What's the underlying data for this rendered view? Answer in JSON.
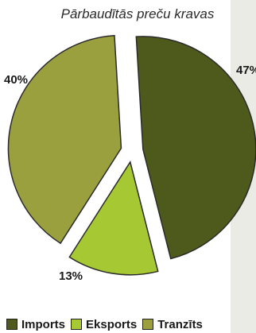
{
  "chart_data": {
    "type": "pie",
    "title": "Pārbaudītās preču kravas",
    "slices": [
      {
        "label": "Imports",
        "value": 47,
        "value_label": "47%",
        "color": "#4e5a1c"
      },
      {
        "label": "Eksports",
        "value": 13,
        "value_label": "13%",
        "color": "#a6c832"
      },
      {
        "label": "Tranzīts",
        "value": 40,
        "value_label": "40%",
        "color": "#9aa03e"
      }
    ],
    "legend_position": "bottom",
    "exploded": true
  }
}
